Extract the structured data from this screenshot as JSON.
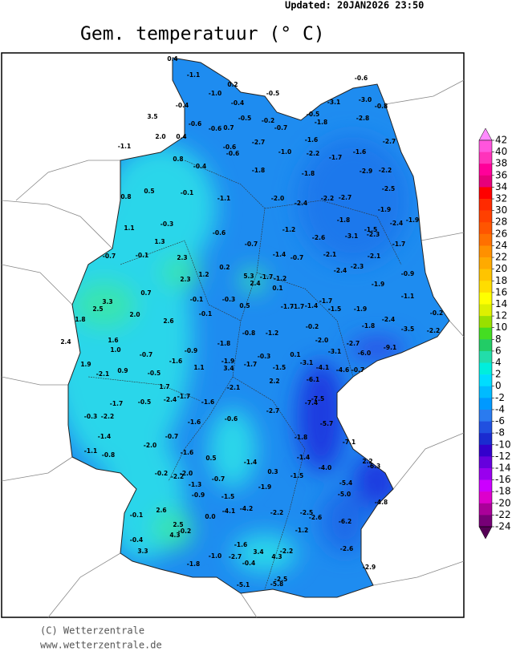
{
  "header": {
    "updated": "Updated:  20JAN2026  23:50",
    "title": "Gem. temperatuur (° C)"
  },
  "colorbar": {
    "levels": [
      42,
      40,
      38,
      36,
      34,
      32,
      30,
      28,
      26,
      24,
      22,
      20,
      18,
      16,
      14,
      12,
      10,
      8,
      6,
      4,
      2,
      0,
      -2,
      -4,
      -6,
      -8,
      -10,
      -12,
      -14,
      -16,
      -18,
      -20,
      -22,
      -24
    ],
    "colors": [
      "#ff8cff",
      "#ff55dd",
      "#ff33bb",
      "#ff0099",
      "#e6007a",
      "#ff0000",
      "#ff2a00",
      "#ff4000",
      "#ff5500",
      "#ff7000",
      "#ff9000",
      "#ffaa00",
      "#ffc400",
      "#ffdd00",
      "#ffff00",
      "#ddf000",
      "#99e000",
      "#44dd22",
      "#22cc66",
      "#22ddaa",
      "#00eedd",
      "#00ddff",
      "#00bbff",
      "#0099ff",
      "#2a7bef",
      "#2050e0",
      "#1a2bd0",
      "#3300cc",
      "#6600dd",
      "#9900ee",
      "#cc00ff",
      "#dd00cc",
      "#aa0099",
      "#770077",
      "#550055"
    ]
  },
  "stations": [
    "0.4",
    "-1.1",
    "0.2",
    "-1.0",
    "-0.5",
    "-0.4",
    "-0.6",
    "-3.1",
    "-3.0",
    "-0.8",
    "-0.4",
    "3.5",
    "-0.5",
    "-0.2",
    "-0.7",
    "-0.5",
    "-1.8",
    "-2.8",
    "-0.6",
    "-0.6",
    "0.7",
    "2.0",
    "0.4",
    "-1.6",
    "-2.7",
    "-1.1",
    "-2.7",
    "-0.6",
    "-0.6",
    "-1.0",
    "-2.2",
    "-1.7",
    "-1.6",
    "0.8",
    "-0.4",
    "-1.8",
    "-1.8",
    "-2.9",
    "-2.2",
    "0.5",
    "-0.1",
    "-1.1",
    "-2.0",
    "-2.2",
    "-2.7",
    "-2.5",
    "0.8",
    "-2.4",
    "-1.9",
    "-1.9",
    "-0.3",
    "-1.8",
    "-1.5",
    "-2.4",
    "1.1",
    "-1.2",
    "-0.6",
    "-2.6",
    "-3.1",
    "-2.3",
    "1.3",
    "-0.7",
    "-1.7",
    "-0.7",
    "-0.1",
    "2.3",
    "-1.4",
    "-0.7",
    "-2.1",
    "-2.1",
    "-2.4",
    "-2.3",
    "0.2",
    "1.2",
    "-0.9",
    "2.3",
    "5.3",
    "2.4",
    "-1.7",
    "-1.2",
    "0.1",
    "-1.9",
    "0.7",
    "3.3",
    "2.5",
    "-0.1",
    "-0.3",
    "0.5",
    "-1.1",
    "-1.7",
    "-1.7",
    "-1.4",
    "-1.7",
    "-1.5",
    "-1.9",
    "-0.1",
    "2.0",
    "2.6",
    "-0.2",
    "1.8",
    "-2.4",
    "-0.2",
    "-1.8",
    "-3.5",
    "-2.2",
    "-0.8",
    "-1.2",
    "2.4",
    "1.6",
    "-1.8",
    "-2.0",
    "-2.7",
    "-9.1",
    "1.0",
    "-0.9",
    "-0.7",
    "-0.3",
    "0.1",
    "-3.1",
    "-6.0",
    "-1.6",
    "-1.7",
    "-1.9",
    "1.9",
    "-3.1",
    "-4.1",
    "3.4",
    "-1.5",
    "1.1",
    "-4.6",
    "-0.7",
    "-2.1",
    "0.9",
    "-0.5",
    "-6.1",
    "2.2",
    "-2.1",
    "1.7",
    "-1.7",
    "-1.6",
    "-7.5",
    "-7.4",
    "-0.5",
    "-2.4",
    "-1.7",
    "-2.7",
    "-0.6",
    "-0.3",
    "-2.2",
    "-1.6",
    "-5.7",
    "-0.7",
    "-1.4",
    "-1.8",
    "-2.0",
    "-7.1",
    "-1.1",
    "-0.8",
    "-1.6",
    "0.5",
    "-1.4",
    "-1.4",
    "2.2",
    "-6.3",
    "-4.0",
    "-0.2",
    "-2.2",
    "-2.0",
    "-0.7",
    "0.3",
    "-1.5",
    "-1.3",
    "-1.9",
    "-5.4",
    "-0.9",
    "-1.5",
    "-5.0",
    "-4.8",
    "2.6",
    "-0.1",
    "-4.1",
    "-4.2",
    "-2.2",
    "-2.5",
    "-2.6",
    "0.0",
    "-6.2",
    "2.5",
    "-0.2",
    "4.3",
    "-0.4",
    "-1.2",
    "-1.6",
    "3.3",
    "3.4",
    "-2.2",
    "4.3",
    "-2.6",
    "-1.0",
    "-2.7",
    "-0.4",
    "-1.8",
    "-2.9",
    "-2.5",
    "-5.8",
    "-5.1"
  ],
  "footer": {
    "copyright": "(C) Wetterzentrale",
    "url": "www.wetterzentrale.de"
  }
}
